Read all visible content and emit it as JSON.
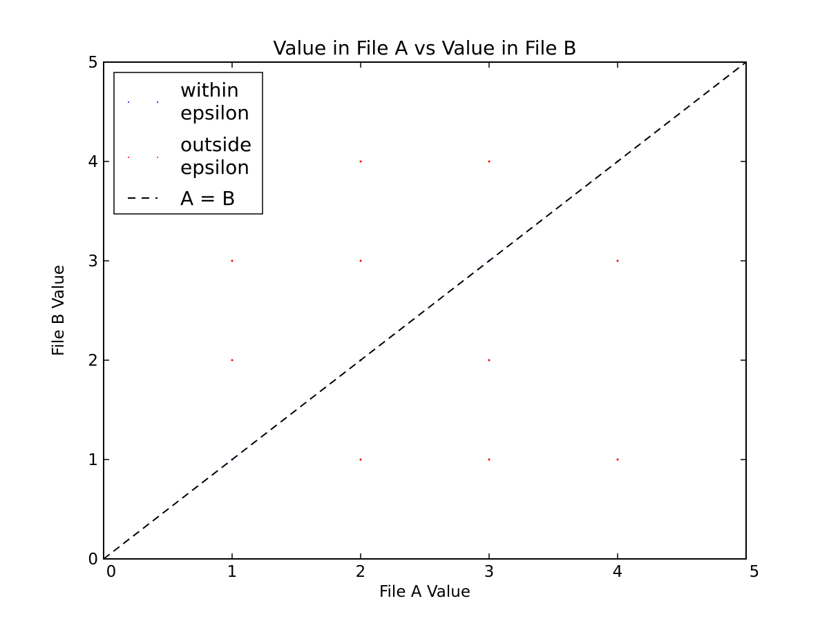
{
  "chart_data": {
    "type": "scatter",
    "title": "Value in File A vs Value in File B",
    "xlabel": "File A Value",
    "ylabel": "File B Value",
    "xlim": [
      0,
      5
    ],
    "ylim": [
      0,
      5
    ],
    "xticks": [
      0,
      1,
      2,
      3,
      4,
      5
    ],
    "yticks": [
      0,
      1,
      2,
      3,
      4,
      5
    ],
    "grid": false,
    "legend_position": "top-left",
    "series": [
      {
        "name": "within epsilon",
        "legend_lines": [
          "within",
          "epsilon"
        ],
        "kind": "points",
        "color": "#0000ff",
        "points": [
          [
            1,
            1
          ],
          [
            2,
            2
          ],
          [
            3,
            3
          ],
          [
            4,
            4
          ]
        ]
      },
      {
        "name": "outside epsilon",
        "legend_lines": [
          "outside",
          "epsilon"
        ],
        "kind": "points",
        "color": "#ff0000",
        "points": [
          [
            1,
            2
          ],
          [
            1,
            3
          ],
          [
            2,
            1
          ],
          [
            2,
            3
          ],
          [
            2,
            4
          ],
          [
            3,
            1
          ],
          [
            3,
            2
          ],
          [
            3,
            4
          ],
          [
            4,
            1
          ],
          [
            4,
            3
          ]
        ]
      },
      {
        "name": "A = B",
        "legend_lines": [
          "A = B"
        ],
        "kind": "dashed-line",
        "color": "#000000",
        "points": [
          [
            0,
            0
          ],
          [
            5,
            5
          ]
        ]
      }
    ]
  }
}
